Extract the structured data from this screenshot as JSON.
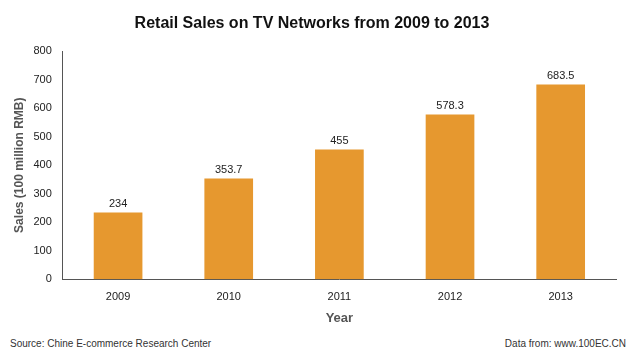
{
  "chart_data": {
    "type": "bar",
    "title": "Retail Sales on TV Networks from 2009 to 2013",
    "x_label": "Year",
    "y_label": "Sales (100 million RMB)",
    "categories": [
      "2009",
      "2010",
      "2011",
      "2012",
      "2013"
    ],
    "values": [
      234,
      353.7,
      455,
      578.3,
      683.5
    ],
    "color": "#e6982f",
    "ylim": [
      0,
      800
    ],
    "yticks": [
      0,
      100,
      200,
      300,
      400,
      500,
      600,
      700,
      800
    ],
    "grid": false,
    "data_labels": true,
    "source": "Source: Chine E-commerce Research Center",
    "data_source": "Data from: www.100EC.CN"
  }
}
